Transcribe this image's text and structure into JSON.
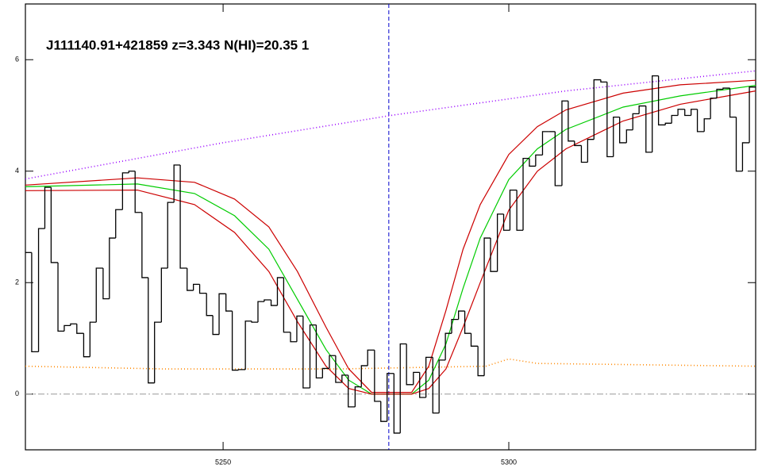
{
  "chart_data": {
    "type": "line",
    "title": "J111140.91+421859 z=3.343 N(HI)=20.35 1",
    "xlim": [
      5215.4,
      5343.2
    ],
    "ylim": [
      -1,
      7
    ],
    "xticks": [
      5250,
      5300
    ],
    "yticks": [
      0,
      2,
      4,
      6
    ],
    "hline": 0,
    "hline_color": "#999999",
    "vline": 5279.0,
    "vline_color": "#0000cc",
    "flux": {
      "color": "#000000",
      "bins": [
        5215.4,
        5216.5,
        5217.7,
        5218.8,
        5219.9,
        5221.1,
        5222.2,
        5223.3,
        5224.4,
        5225.6,
        5226.7,
        5227.8,
        5229.0,
        5230.1,
        5231.2,
        5232.4,
        5233.5,
        5234.6,
        5235.8,
        5236.9,
        5238.0,
        5239.2,
        5240.3,
        5241.4,
        5242.5,
        5243.7,
        5244.8,
        5245.9,
        5247.1,
        5248.2,
        5249.3,
        5250.5,
        5251.6,
        5252.7,
        5253.9,
        5255.0,
        5256.1,
        5257.2,
        5258.4,
        5259.5,
        5260.6,
        5261.8,
        5262.9,
        5264.0,
        5265.2,
        5266.3,
        5267.4,
        5268.6,
        5269.7,
        5270.8,
        5271.9,
        5273.1,
        5274.2,
        5275.3,
        5276.5,
        5277.6,
        5278.7,
        5279.9,
        5281.0,
        5282.1,
        5283.3,
        5284.4,
        5285.5,
        5286.7,
        5287.8,
        5288.9,
        5290.0,
        5291.2,
        5292.3,
        5293.4,
        5294.6,
        5295.7,
        5296.8,
        5298.0,
        5299.1,
        5300.2,
        5301.4,
        5302.5,
        5303.6,
        5304.7,
        5305.9,
        5307.0,
        5308.1,
        5309.3,
        5310.4,
        5311.5,
        5312.7,
        5313.8,
        5314.9,
        5316.1,
        5317.2,
        5318.3,
        5319.4,
        5320.6,
        5321.7,
        5322.8,
        5324.0,
        5325.1,
        5326.2,
        5327.4,
        5328.5,
        5329.6,
        5330.8,
        5331.9,
        5333.0,
        5334.2,
        5335.3,
        5336.4,
        5337.5,
        5338.7,
        5339.8,
        5340.9,
        5342.1,
        5343.2
      ],
      "values": [
        2.54,
        0.76,
        2.97,
        3.71,
        2.36,
        1.13,
        1.23,
        1.26,
        1.09,
        0.67,
        1.29,
        2.26,
        1.71,
        2.8,
        3.31,
        3.97,
        4.0,
        3.26,
        2.09,
        0.2,
        1.29,
        2.26,
        3.44,
        4.11,
        2.26,
        1.86,
        1.97,
        1.81,
        1.41,
        1.07,
        1.8,
        1.49,
        0.43,
        0.44,
        1.31,
        1.29,
        1.66,
        1.69,
        1.59,
        2.09,
        1.11,
        0.94,
        1.4,
        0.11,
        1.24,
        0.29,
        0.46,
        0.69,
        0.21,
        0.34,
        -0.23,
        0.13,
        0.51,
        0.79,
        -0.13,
        -0.49,
        0.37,
        -0.7,
        0.9,
        0.17,
        0.39,
        -0.06,
        0.66,
        -0.34,
        0.61,
        1.09,
        1.34,
        1.49,
        1.09,
        0.86,
        0.33,
        2.8,
        2.2,
        3.23,
        2.94,
        3.66,
        2.94,
        4.23,
        4.09,
        4.29,
        4.71,
        4.71,
        3.74,
        5.26,
        4.54,
        4.46,
        4.16,
        4.57,
        5.64,
        5.6,
        4.26,
        4.97,
        4.51,
        4.74,
        5.03,
        5.17,
        4.34,
        5.71,
        4.83,
        4.86,
        5.0,
        5.11,
        5.0,
        5.11,
        4.71,
        4.94,
        5.31,
        5.47,
        5.49,
        4.97,
        4.0,
        4.51,
        5.51
      ]
    },
    "series": [
      {
        "color": "#9900ff",
        "style": "dotted",
        "x": [
          5215.4,
          5250,
          5280,
          5310,
          5343.2
        ],
        "values": [
          3.86,
          4.51,
          5.01,
          5.44,
          5.8
        ]
      },
      {
        "color": "#ff8800",
        "style": "dotted",
        "x": [
          5215.4,
          5240,
          5270,
          5296,
          5300,
          5305,
          5343.2
        ],
        "values": [
          0.5,
          0.45,
          0.45,
          0.5,
          0.63,
          0.55,
          0.5
        ]
      },
      {
        "color": "#00cc00",
        "style": "solid",
        "x": [
          5215.4,
          5235,
          5245,
          5252,
          5258,
          5263,
          5268,
          5272,
          5276,
          5283,
          5286,
          5289,
          5292,
          5295,
          5300,
          5305,
          5310,
          5320,
          5330,
          5343.2
        ],
        "values": [
          3.72,
          3.77,
          3.6,
          3.2,
          2.6,
          1.7,
          0.8,
          0.25,
          0.0,
          0.0,
          0.25,
          0.9,
          1.9,
          2.8,
          3.85,
          4.4,
          4.75,
          5.15,
          5.35,
          5.54
        ]
      },
      {
        "color": "#cc0000",
        "style": "solid",
        "x": [
          5215.4,
          5235,
          5245,
          5252,
          5258,
          5263,
          5268,
          5272,
          5276,
          5283,
          5286,
          5289,
          5292,
          5295,
          5300,
          5305,
          5310,
          5320,
          5330,
          5343.2
        ],
        "values": [
          3.75,
          3.88,
          3.8,
          3.5,
          3.0,
          2.2,
          1.2,
          0.45,
          0.03,
          0.03,
          0.5,
          1.5,
          2.6,
          3.4,
          4.3,
          4.8,
          5.1,
          5.4,
          5.55,
          5.63
        ]
      },
      {
        "color": "#cc0000",
        "style": "solid",
        "x": [
          5215.4,
          5235,
          5245,
          5252,
          5258,
          5263,
          5268,
          5272,
          5276,
          5283,
          5286,
          5289,
          5292,
          5295,
          5300,
          5305,
          5310,
          5320,
          5330,
          5343.2
        ],
        "values": [
          3.65,
          3.66,
          3.4,
          2.9,
          2.2,
          1.3,
          0.5,
          0.1,
          0.0,
          0.0,
          0.1,
          0.45,
          1.2,
          2.0,
          3.3,
          4.0,
          4.4,
          4.9,
          5.2,
          5.44
        ]
      }
    ]
  }
}
